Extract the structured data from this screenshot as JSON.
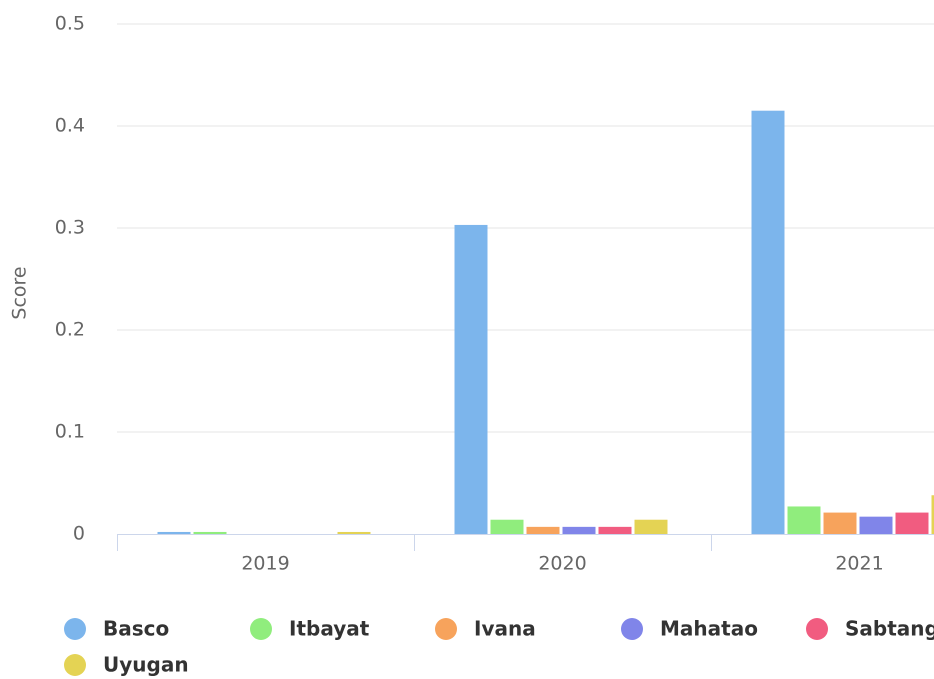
{
  "chart_data": {
    "type": "bar",
    "y_axis_label": "Score",
    "categories": [
      "2019",
      "2020",
      "2021"
    ],
    "series": [
      {
        "name": "Basco",
        "color": "#7cb5ec",
        "values": [
          0.002,
          0.303,
          0.415
        ]
      },
      {
        "name": "Itbayat",
        "color": "#90ed7d",
        "values": [
          0.002,
          0.014,
          0.027
        ]
      },
      {
        "name": "Ivana",
        "color": "#f7a35c",
        "values": [
          0,
          0.007,
          0.021
        ]
      },
      {
        "name": "Mahatao",
        "color": "#8085e9",
        "values": [
          0,
          0.007,
          0.017
        ]
      },
      {
        "name": "Sabtang",
        "color": "#f15c80",
        "values": [
          0,
          0.007,
          0.021
        ]
      },
      {
        "name": "Uyugan",
        "color": "#e4d354",
        "values": [
          0.002,
          0.014,
          0.038
        ]
      }
    ],
    "ylim": [
      0,
      0.5
    ],
    "yticks": [
      0,
      0.1,
      0.2,
      0.3,
      0.4,
      0.5
    ],
    "grid": true
  }
}
